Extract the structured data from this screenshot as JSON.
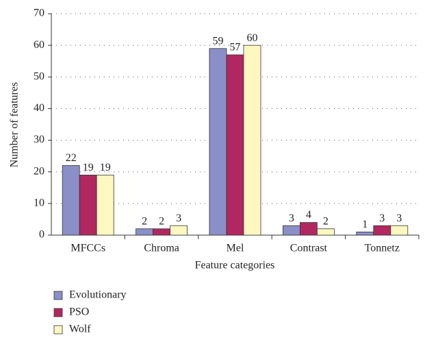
{
  "chart_data": {
    "type": "bar",
    "x_label": "Feature categories",
    "y_label": "Number of features",
    "categories": [
      "MFCCs",
      "Chroma",
      "Mel",
      "Contrast",
      "Tonnetz"
    ],
    "series": [
      {
        "name": "Evolutionary",
        "color": "#8b8fc8",
        "values": [
          22,
          2,
          59,
          3,
          1
        ]
      },
      {
        "name": "PSO",
        "color": "#b0285f",
        "values": [
          19,
          2,
          57,
          4,
          3
        ]
      },
      {
        "name": "Wolf",
        "color": "#fdf8c0",
        "values": [
          19,
          3,
          60,
          2,
          3
        ]
      }
    ],
    "ylim": [
      0,
      70
    ],
    "yticks": [
      0,
      10,
      20,
      30,
      40,
      50,
      60,
      70
    ],
    "grid": true
  }
}
